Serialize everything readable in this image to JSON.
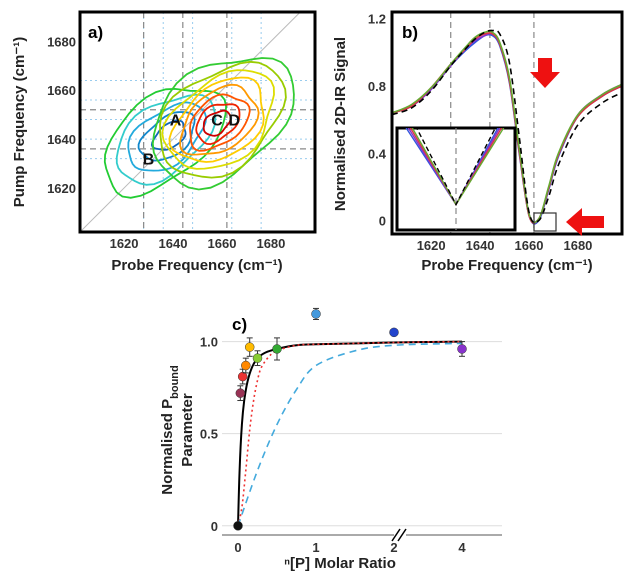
{
  "chart_data": [
    {
      "panel": "a)",
      "type": "contour",
      "xlabel": "Probe Frequency (cm⁻¹)",
      "ylabel": "Pump Frequency (cm⁻¹)",
      "xlim": [
        1602,
        1698
      ],
      "ylim": [
        1602,
        1692
      ],
      "xticks": [
        "1620",
        "1640",
        "1660",
        "1680"
      ],
      "xtick_values": [
        1620,
        1640,
        1660,
        1680
      ],
      "yticks": [
        "1620",
        "1640",
        "1660",
        "1680"
      ],
      "ytick_values": [
        1620,
        1640,
        1660,
        1680
      ],
      "peak_labels": [
        {
          "text": "A",
          "x": 1641,
          "y": 1648
        },
        {
          "text": "B",
          "x": 1630,
          "y": 1632
        },
        {
          "text": "C",
          "x": 1658,
          "y": 1648
        },
        {
          "text": "D",
          "x": 1665,
          "y": 1648
        }
      ],
      "negative_peak": {
        "x": 1636,
        "y": 1640
      },
      "positive_peak": {
        "x": 1660,
        "y": 1648
      },
      "negative_colors": [
        "#22cc33",
        "#33cccc",
        "#22aadd",
        "#1188cc",
        "#1166bb"
      ],
      "positive_colors": [
        "#33cc33",
        "#99cc00",
        "#dddd00",
        "#ffcc00",
        "#ff9900",
        "#ff5500",
        "#ee2200",
        "#cc0000"
      ]
    },
    {
      "panel": "b)",
      "type": "line",
      "xlabel": "Probe Frequency (cm⁻¹)",
      "ylabel": "Normalised 2D-IR Signal",
      "xlim": [
        1604,
        1698
      ],
      "ylim": [
        -0.08,
        1.24
      ],
      "xticks": [
        "1620",
        "1640",
        "1660",
        "1680"
      ],
      "xtick_values": [
        1620,
        1640,
        1660,
        1680
      ],
      "yticks": [
        "0",
        "0.4",
        "0.8",
        "1.2"
      ],
      "ytick_values": [
        0,
        0.4,
        0.8,
        1.2
      ],
      "x": [
        1604,
        1612,
        1620,
        1628,
        1634,
        1638,
        1642,
        1645,
        1648,
        1652,
        1656,
        1660,
        1664,
        1668,
        1672,
        1680,
        1690,
        1698
      ],
      "series": [
        {
          "values": [
            0.64,
            0.68,
            0.78,
            0.92,
            1.01,
            1.06,
            1.1,
            1.1,
            1.04,
            0.82,
            0.4,
            0.03,
            0.0,
            0.18,
            0.38,
            0.62,
            0.74,
            0.8
          ],
          "color": "#3355dd",
          "style": "solid"
        },
        {
          "values": [
            0.64,
            0.68,
            0.78,
            0.92,
            1.02,
            1.07,
            1.1,
            1.11,
            1.05,
            0.84,
            0.42,
            0.04,
            0.01,
            0.19,
            0.39,
            0.63,
            0.75,
            0.81
          ],
          "color": "#8833cc",
          "style": "solid"
        },
        {
          "values": [
            0.64,
            0.68,
            0.79,
            0.93,
            1.02,
            1.08,
            1.11,
            1.11,
            1.05,
            0.83,
            0.41,
            0.03,
            0.01,
            0.19,
            0.39,
            0.62,
            0.74,
            0.8
          ],
          "color": "#dd3344",
          "style": "solid"
        },
        {
          "values": [
            0.64,
            0.69,
            0.79,
            0.93,
            1.03,
            1.09,
            1.12,
            1.12,
            1.06,
            0.85,
            0.43,
            0.04,
            0.01,
            0.2,
            0.4,
            0.63,
            0.75,
            0.81
          ],
          "color": "#66aa33",
          "style": "solid"
        },
        {
          "values": [
            0.63,
            0.67,
            0.77,
            0.92,
            1.02,
            1.08,
            1.12,
            1.13,
            1.11,
            0.94,
            0.5,
            0.05,
            0.0,
            0.14,
            0.33,
            0.57,
            0.7,
            0.76
          ],
          "color": "#000000",
          "style": "dashed"
        }
      ],
      "inset": {
        "xlim": [
          1657,
          1667
        ],
        "ylim": [
          -0.02,
          0.06
        ]
      },
      "arrows": 2
    },
    {
      "panel": "c)",
      "type": "scatter",
      "xlabel": "ⁿ[P] Molar Ratio",
      "ylabel": "Normalised P",
      "ylabel_sub": "bound",
      "ylabel_line2": "Parameter",
      "xticks": [
        "0",
        "1",
        "2",
        "4"
      ],
      "xtick_values": [
        0,
        1,
        2,
        4
      ],
      "yticks": [
        "0",
        "0.5",
        "1.0"
      ],
      "ytick_values": [
        0,
        0.5,
        1.0
      ],
      "ylim": [
        -0.05,
        1.28
      ],
      "axis_break_between": [
        2,
        4
      ],
      "points": [
        {
          "x": 0,
          "y": 0.0,
          "err": 0.0,
          "color": "#111111"
        },
        {
          "x": 0.03,
          "y": 0.72,
          "err": 0.04,
          "color": "#993355"
        },
        {
          "x": 0.06,
          "y": 0.81,
          "err": 0.04,
          "color": "#ee3333"
        },
        {
          "x": 0.1,
          "y": 0.87,
          "err": 0.04,
          "color": "#ff8800"
        },
        {
          "x": 0.15,
          "y": 0.97,
          "err": 0.05,
          "color": "#ffbb00"
        },
        {
          "x": 0.25,
          "y": 0.91,
          "err": 0.04,
          "color": "#88cc33"
        },
        {
          "x": 0.5,
          "y": 0.96,
          "err": 0.06,
          "color": "#33aa33"
        },
        {
          "x": 1.0,
          "y": 1.15,
          "err": 0.03,
          "color": "#4499dd"
        },
        {
          "x": 2.0,
          "y": 1.05,
          "err": 0.0,
          "color": "#2244cc"
        },
        {
          "x": 4.0,
          "y": 0.96,
          "err": 0.04,
          "color": "#8833cc"
        }
      ],
      "fits": [
        {
          "style": "solid",
          "color": "#000000",
          "x": [
            0,
            0.02,
            0.05,
            0.08,
            0.12,
            0.18,
            0.25,
            0.35,
            0.5,
            0.75,
            1,
            2,
            4
          ],
          "y": [
            0,
            0.3,
            0.55,
            0.68,
            0.78,
            0.86,
            0.91,
            0.94,
            0.96,
            0.98,
            0.985,
            0.995,
            1.0
          ]
        },
        {
          "style": "dotted",
          "color": "#ee3333",
          "x": [
            0,
            0.05,
            0.1,
            0.15,
            0.2,
            0.25,
            0.3,
            0.4,
            0.5,
            0.75,
            1,
            2,
            4
          ],
          "y": [
            0,
            0.1,
            0.3,
            0.52,
            0.68,
            0.79,
            0.86,
            0.92,
            0.95,
            0.98,
            0.985,
            0.995,
            1.0
          ]
        },
        {
          "style": "dashed",
          "color": "#44aadd",
          "x": [
            0,
            0.25,
            0.5,
            0.75,
            1,
            1.5,
            2,
            4
          ],
          "y": [
            0,
            0.3,
            0.55,
            0.74,
            0.87,
            0.95,
            0.98,
            0.99
          ]
        }
      ]
    }
  ]
}
